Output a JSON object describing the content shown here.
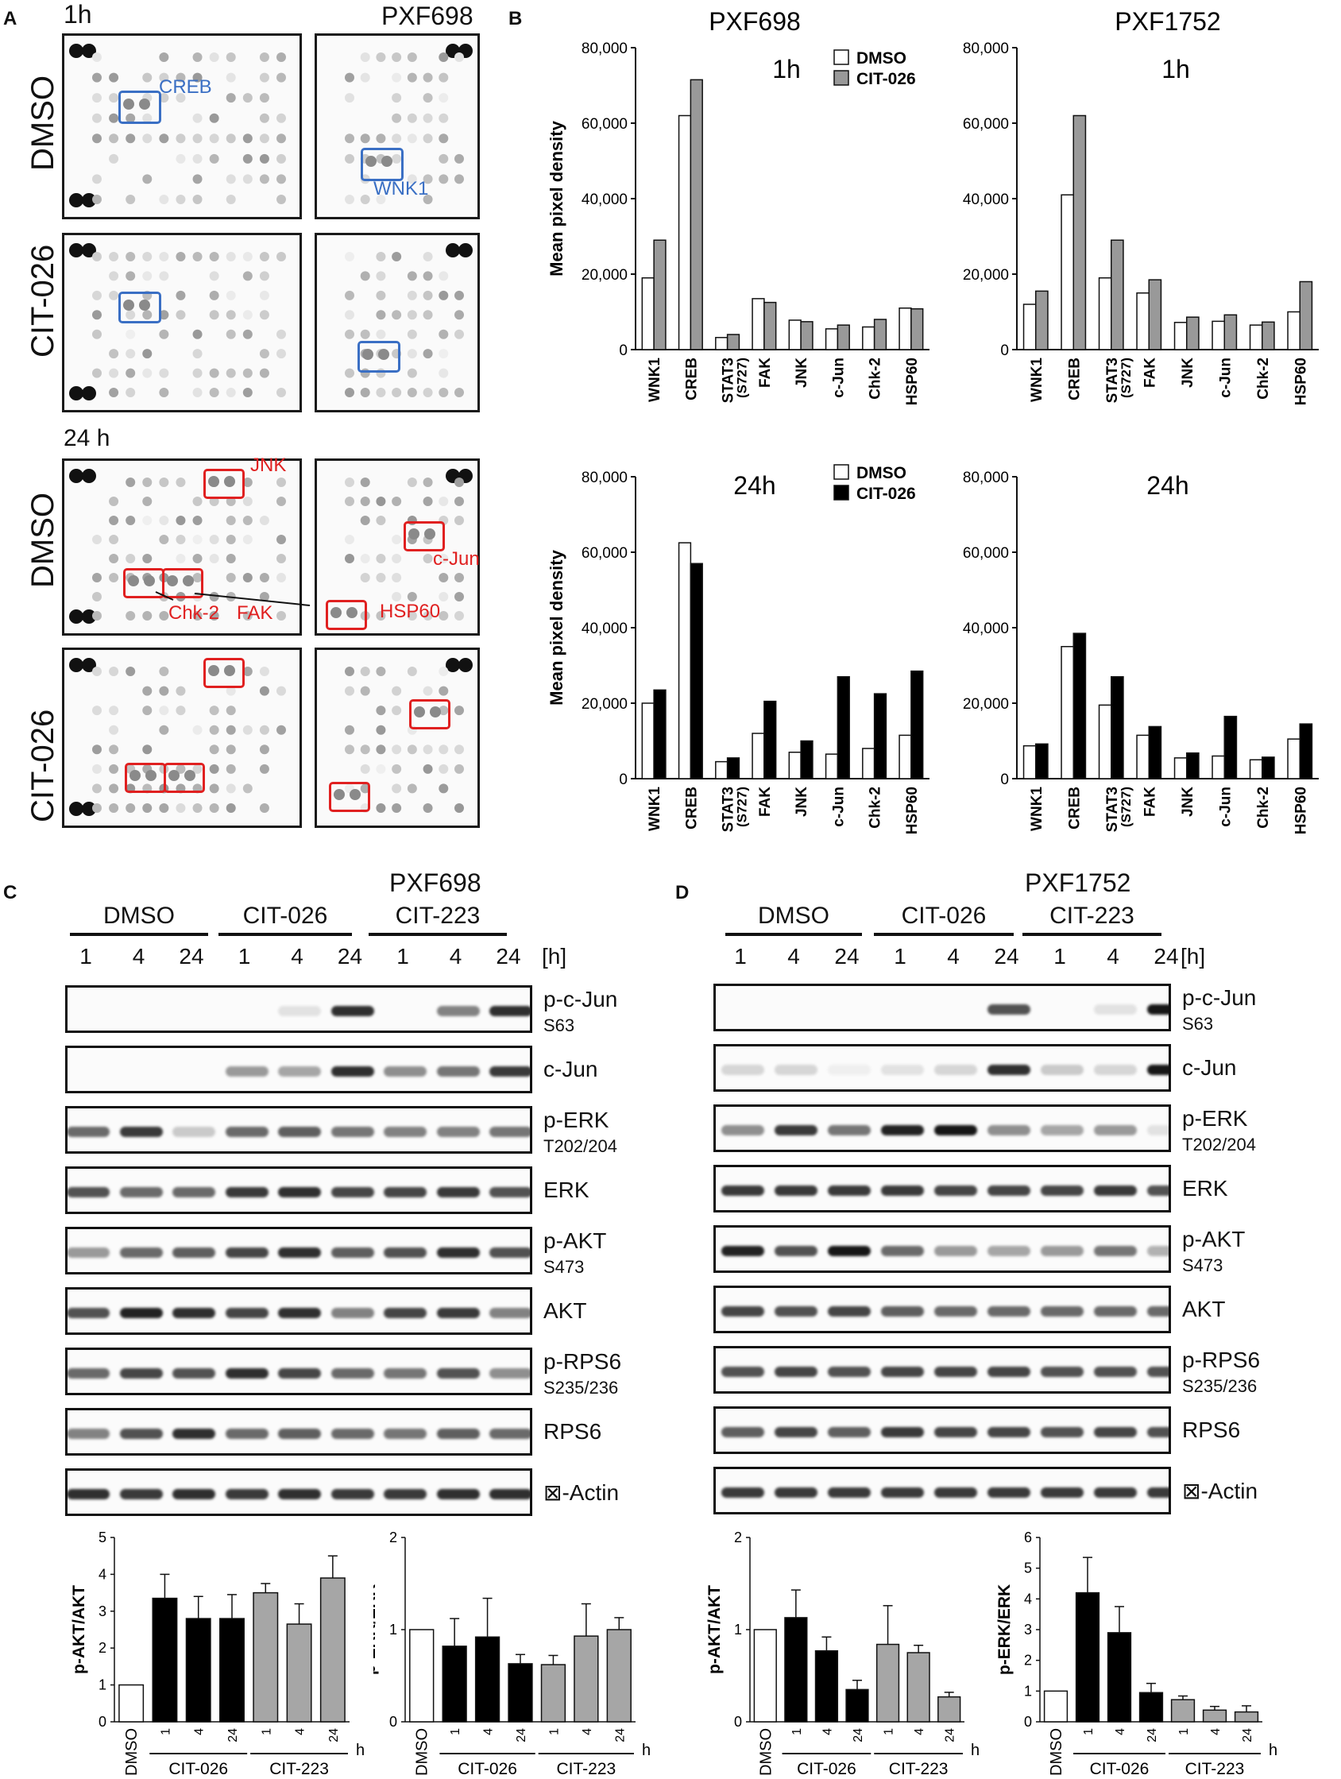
{
  "panel_letters": {
    "a": "A",
    "b": "B",
    "c": "C",
    "d": "D"
  },
  "panel_a": {
    "time_1h": "1h",
    "time_24h": "24 h",
    "cell_line": "PXF698",
    "row_dmso": "DMSO",
    "row_cit": "CIT-026",
    "callouts": {
      "creb": "CREB",
      "wnk1": "WNK1",
      "jnk": "JNK",
      "cjun": "c-Jun",
      "chk2": "Chk-2",
      "fak": "FAK",
      "hsp60": "HSP60"
    }
  },
  "panel_c": {
    "cell_line": "PXF698",
    "groups": [
      "DMSO",
      "CIT-026",
      "CIT-223"
    ],
    "times": [
      "1",
      "4",
      "24",
      "1",
      "4",
      "24",
      "1",
      "4",
      "24"
    ],
    "unit": "[h]",
    "blots": [
      {
        "name": "p-c-Jun",
        "site": "S63"
      },
      {
        "name": "c-Jun",
        "site": ""
      },
      {
        "name": "p-ERK",
        "site": "T202/204"
      },
      {
        "name": "ERK",
        "site": ""
      },
      {
        "name": "p-AKT",
        "site": "S473"
      },
      {
        "name": "AKT",
        "site": ""
      },
      {
        "name": "p-RPS6",
        "site": "S235/236"
      },
      {
        "name": "RPS6",
        "site": ""
      },
      {
        "name": "⊠-Actin",
        "site": ""
      }
    ]
  },
  "panel_d": {
    "cell_line": "PXF1752",
    "groups": [
      "DMSO",
      "CIT-026",
      "CIT-223"
    ],
    "times": [
      "1",
      "4",
      "24",
      "1",
      "4",
      "24",
      "1",
      "4",
      "24"
    ],
    "unit": "[h]",
    "blots": [
      {
        "name": "p-c-Jun",
        "site": "S63"
      },
      {
        "name": "c-Jun",
        "site": ""
      },
      {
        "name": "p-ERK",
        "site": "T202/204"
      },
      {
        "name": "ERK",
        "site": ""
      },
      {
        "name": "p-AKT",
        "site": "S473"
      },
      {
        "name": "AKT",
        "site": ""
      },
      {
        "name": "p-RPS6",
        "site": "S235/236"
      },
      {
        "name": "RPS6",
        "site": ""
      },
      {
        "name": "⊠-Actin",
        "site": ""
      }
    ]
  },
  "colors": {
    "dmso": "#ffffff",
    "cit026_1h": "#999999",
    "cit026_24h": "#000000",
    "cit026_bar": "#000000",
    "cit223_bar": "#a6a6a6",
    "box_1h": "#3a6fc4",
    "box_24h": "#e02020"
  },
  "chart_data": [
    {
      "id": "b_pxf698_1h",
      "type": "bar",
      "title": "PXF698",
      "annotation": "1h",
      "ylabel": "Mean pixel density",
      "ylim": [
        0,
        80000
      ],
      "yticks": [
        "0",
        "20,000",
        "40,000",
        "60,000",
        "80,000"
      ],
      "categories": [
        "WNK1",
        "CREB",
        "STAT3 (S727)",
        "FAK",
        "JNK",
        "c-Jun",
        "Chk-2",
        "HSP60"
      ],
      "legend": [
        "DMSO",
        "CIT-026"
      ],
      "series": [
        {
          "name": "DMSO",
          "values": [
            19000,
            62000,
            3200,
            13500,
            7800,
            5500,
            6000,
            11000
          ]
        },
        {
          "name": "CIT-026",
          "values": [
            29000,
            71500,
            4000,
            12500,
            7400,
            6500,
            8000,
            10800
          ]
        }
      ]
    },
    {
      "id": "b_pxf1752_1h",
      "type": "bar",
      "title": "PXF1752",
      "annotation": "1h",
      "ylabel": "",
      "ylim": [
        0,
        80000
      ],
      "yticks": [
        "0",
        "20,000",
        "40,000",
        "60,000",
        "80,000"
      ],
      "categories": [
        "WNK1",
        "CREB",
        "STAT3 (S727)",
        "FAK",
        "JNK",
        "c-Jun",
        "Chk-2",
        "HSP60"
      ],
      "legend": [],
      "series": [
        {
          "name": "DMSO",
          "values": [
            12000,
            41000,
            19000,
            15000,
            7200,
            7500,
            6500,
            10000
          ]
        },
        {
          "name": "CIT-026",
          "values": [
            15500,
            62000,
            29000,
            18500,
            8600,
            9200,
            7300,
            18000
          ]
        }
      ]
    },
    {
      "id": "b_pxf698_24h",
      "type": "bar",
      "title": "",
      "annotation": "24h",
      "ylabel": "Mean pixel density",
      "ylim": [
        0,
        80000
      ],
      "yticks": [
        "0",
        "20,000",
        "40,000",
        "60,000",
        "80,000"
      ],
      "categories": [
        "WNK1",
        "CREB",
        "STAT3 (S727)",
        "FAK",
        "JNK",
        "c-Jun",
        "Chk-2",
        "HSP60"
      ],
      "legend": [
        "DMSO",
        "CIT-026"
      ],
      "series": [
        {
          "name": "DMSO",
          "values": [
            20000,
            62500,
            4500,
            12000,
            7000,
            6500,
            8000,
            11500
          ]
        },
        {
          "name": "CIT-026",
          "values": [
            23500,
            57000,
            5500,
            20500,
            10000,
            27000,
            22500,
            28500
          ]
        }
      ]
    },
    {
      "id": "b_pxf1752_24h",
      "type": "bar",
      "title": "",
      "annotation": "24h",
      "ylabel": "",
      "ylim": [
        0,
        80000
      ],
      "yticks": [
        "0",
        "20,000",
        "40,000",
        "60,000",
        "80,000"
      ],
      "categories": [
        "WNK1",
        "CREB",
        "STAT3 (S727)",
        "FAK",
        "JNK",
        "c-Jun",
        "Chk-2",
        "HSP60"
      ],
      "legend": [],
      "series": [
        {
          "name": "DMSO",
          "values": [
            8700,
            35000,
            19500,
            11500,
            5500,
            6000,
            5000,
            10500
          ]
        },
        {
          "name": "CIT-026",
          "values": [
            9200,
            38500,
            27000,
            13800,
            6800,
            16500,
            5700,
            14500
          ]
        }
      ]
    },
    {
      "id": "c_akt",
      "type": "bar",
      "ylabel": "p-AKT/AKT",
      "ylim": [
        0,
        5
      ],
      "yticks": [
        "0",
        "1",
        "2",
        "3",
        "4",
        "5"
      ],
      "categories": [
        "DMSO",
        "1",
        "4",
        "24",
        "1",
        "4",
        "24"
      ],
      "groups": [
        "CIT-026",
        "CIT-223"
      ],
      "unit": "h",
      "values": [
        1.0,
        3.35,
        2.8,
        2.8,
        3.5,
        2.65,
        3.9
      ],
      "errors": [
        0,
        0.65,
        0.6,
        0.65,
        0.25,
        0.55,
        0.6
      ]
    },
    {
      "id": "c_erk",
      "type": "bar",
      "ylabel": "p-ERK/ERK",
      "ylim": [
        0,
        2
      ],
      "yticks": [
        "0",
        "1",
        "2"
      ],
      "categories": [
        "DMSO",
        "1",
        "4",
        "24",
        "1",
        "4",
        "24"
      ],
      "groups": [
        "CIT-026",
        "CIT-223"
      ],
      "unit": "h",
      "values": [
        1.0,
        0.82,
        0.92,
        0.63,
        0.62,
        0.93,
        1.0
      ],
      "errors": [
        0,
        0.3,
        0.42,
        0.1,
        0.1,
        0.35,
        0.13
      ]
    },
    {
      "id": "d_akt",
      "type": "bar",
      "ylabel": "p-AKT/AKT",
      "ylim": [
        0,
        2
      ],
      "yticks": [
        "0",
        "1",
        "2"
      ],
      "categories": [
        "DMSO",
        "1",
        "4",
        "24",
        "1",
        "4",
        "24"
      ],
      "groups": [
        "CIT-026",
        "CIT-223"
      ],
      "unit": "h",
      "values": [
        1.0,
        1.13,
        0.77,
        0.35,
        0.84,
        0.75,
        0.27
      ],
      "errors": [
        0,
        0.3,
        0.15,
        0.1,
        0.42,
        0.08,
        0.05
      ]
    },
    {
      "id": "d_erk",
      "type": "bar",
      "ylabel": "p-ERK/ERK",
      "ylim": [
        0,
        6
      ],
      "yticks": [
        "0",
        "1",
        "2",
        "3",
        "4",
        "5",
        "6"
      ],
      "categories": [
        "DMSO",
        "1",
        "4",
        "24",
        "1",
        "4",
        "24"
      ],
      "groups": [
        "CIT-026",
        "CIT-223"
      ],
      "unit": "h",
      "values": [
        1.0,
        4.2,
        2.9,
        0.95,
        0.72,
        0.38,
        0.32
      ],
      "errors": [
        0,
        1.15,
        0.85,
        0.3,
        0.12,
        0.12,
        0.2
      ]
    }
  ]
}
